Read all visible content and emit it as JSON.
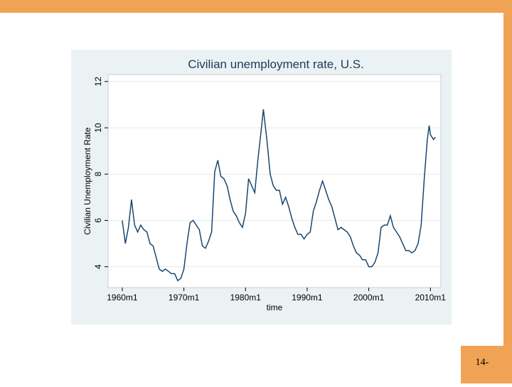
{
  "slide_number": "14-",
  "chart_data": {
    "type": "line",
    "title": "Civilian unemployment rate, U.S.",
    "y_label": "Civilian Unemployment Rate",
    "x_label": "time",
    "color": "#1a476f",
    "grid": true,
    "x": [
      1960.0,
      1960.5,
      1961.0,
      1961.5,
      1962.0,
      1962.5,
      1963.0,
      1963.5,
      1964.0,
      1964.5,
      1965.0,
      1965.5,
      1966.0,
      1966.5,
      1967.0,
      1967.5,
      1968.0,
      1968.5,
      1969.0,
      1969.5,
      1970.0,
      1970.5,
      1971.0,
      1971.5,
      1972.0,
      1972.5,
      1973.0,
      1973.5,
      1974.0,
      1974.5,
      1975.0,
      1975.5,
      1976.0,
      1976.5,
      1977.0,
      1977.5,
      1978.0,
      1978.5,
      1979.0,
      1979.5,
      1980.0,
      1980.5,
      1981.0,
      1981.5,
      1982.0,
      1982.5,
      1982.9,
      1983.5,
      1984.0,
      1984.5,
      1985.0,
      1985.5,
      1986.0,
      1986.5,
      1987.0,
      1987.5,
      1988.0,
      1988.5,
      1989.0,
      1989.5,
      1990.0,
      1990.5,
      1991.0,
      1991.5,
      1992.0,
      1992.5,
      1993.0,
      1993.5,
      1994.0,
      1994.5,
      1995.0,
      1995.5,
      1996.0,
      1996.5,
      1997.0,
      1997.5,
      1998.0,
      1998.5,
      1999.0,
      1999.5,
      2000.0,
      2000.5,
      2001.0,
      2001.5,
      2002.0,
      2002.5,
      2003.0,
      2003.5,
      2004.0,
      2004.5,
      2005.0,
      2005.5,
      2006.0,
      2006.5,
      2007.0,
      2007.5,
      2008.0,
      2008.5,
      2009.0,
      2009.5,
      2009.8,
      2010.0,
      2010.5,
      2010.8
    ],
    "values": [
      6.0,
      5.0,
      5.7,
      6.9,
      5.8,
      5.5,
      5.8,
      5.6,
      5.5,
      5.0,
      4.9,
      4.4,
      3.9,
      3.8,
      3.9,
      3.8,
      3.7,
      3.7,
      3.4,
      3.5,
      3.9,
      5.0,
      5.9,
      6.0,
      5.8,
      5.6,
      4.9,
      4.8,
      5.1,
      5.5,
      8.1,
      8.6,
      7.9,
      7.8,
      7.5,
      6.9,
      6.4,
      6.2,
      5.9,
      5.7,
      6.3,
      7.8,
      7.5,
      7.2,
      8.6,
      9.8,
      10.8,
      9.4,
      8.0,
      7.5,
      7.3,
      7.3,
      6.7,
      7.0,
      6.6,
      6.1,
      5.7,
      5.4,
      5.4,
      5.2,
      5.4,
      5.5,
      6.4,
      6.8,
      7.3,
      7.7,
      7.3,
      6.9,
      6.6,
      6.1,
      5.6,
      5.7,
      5.6,
      5.5,
      5.3,
      4.9,
      4.6,
      4.5,
      4.3,
      4.3,
      4.0,
      4.0,
      4.2,
      4.6,
      5.7,
      5.8,
      5.8,
      6.2,
      5.7,
      5.5,
      5.3,
      5.0,
      4.7,
      4.7,
      4.6,
      4.7,
      5.0,
      5.8,
      7.8,
      9.5,
      10.1,
      9.7,
      9.5,
      9.6
    ],
    "xlim": [
      1957.7,
      2011.7
    ],
    "ylim": [
      3.1,
      12.3
    ],
    "xticks": [
      {
        "value": 1960,
        "label": "1960m1"
      },
      {
        "value": 1970,
        "label": "1970m1"
      },
      {
        "value": 1980,
        "label": "1980m1"
      },
      {
        "value": 1990,
        "label": "1990m1"
      },
      {
        "value": 2000,
        "label": "2000m1"
      },
      {
        "value": 2010,
        "label": "2010m1"
      }
    ],
    "yticks": [
      4,
      6,
      8,
      10,
      12
    ]
  }
}
